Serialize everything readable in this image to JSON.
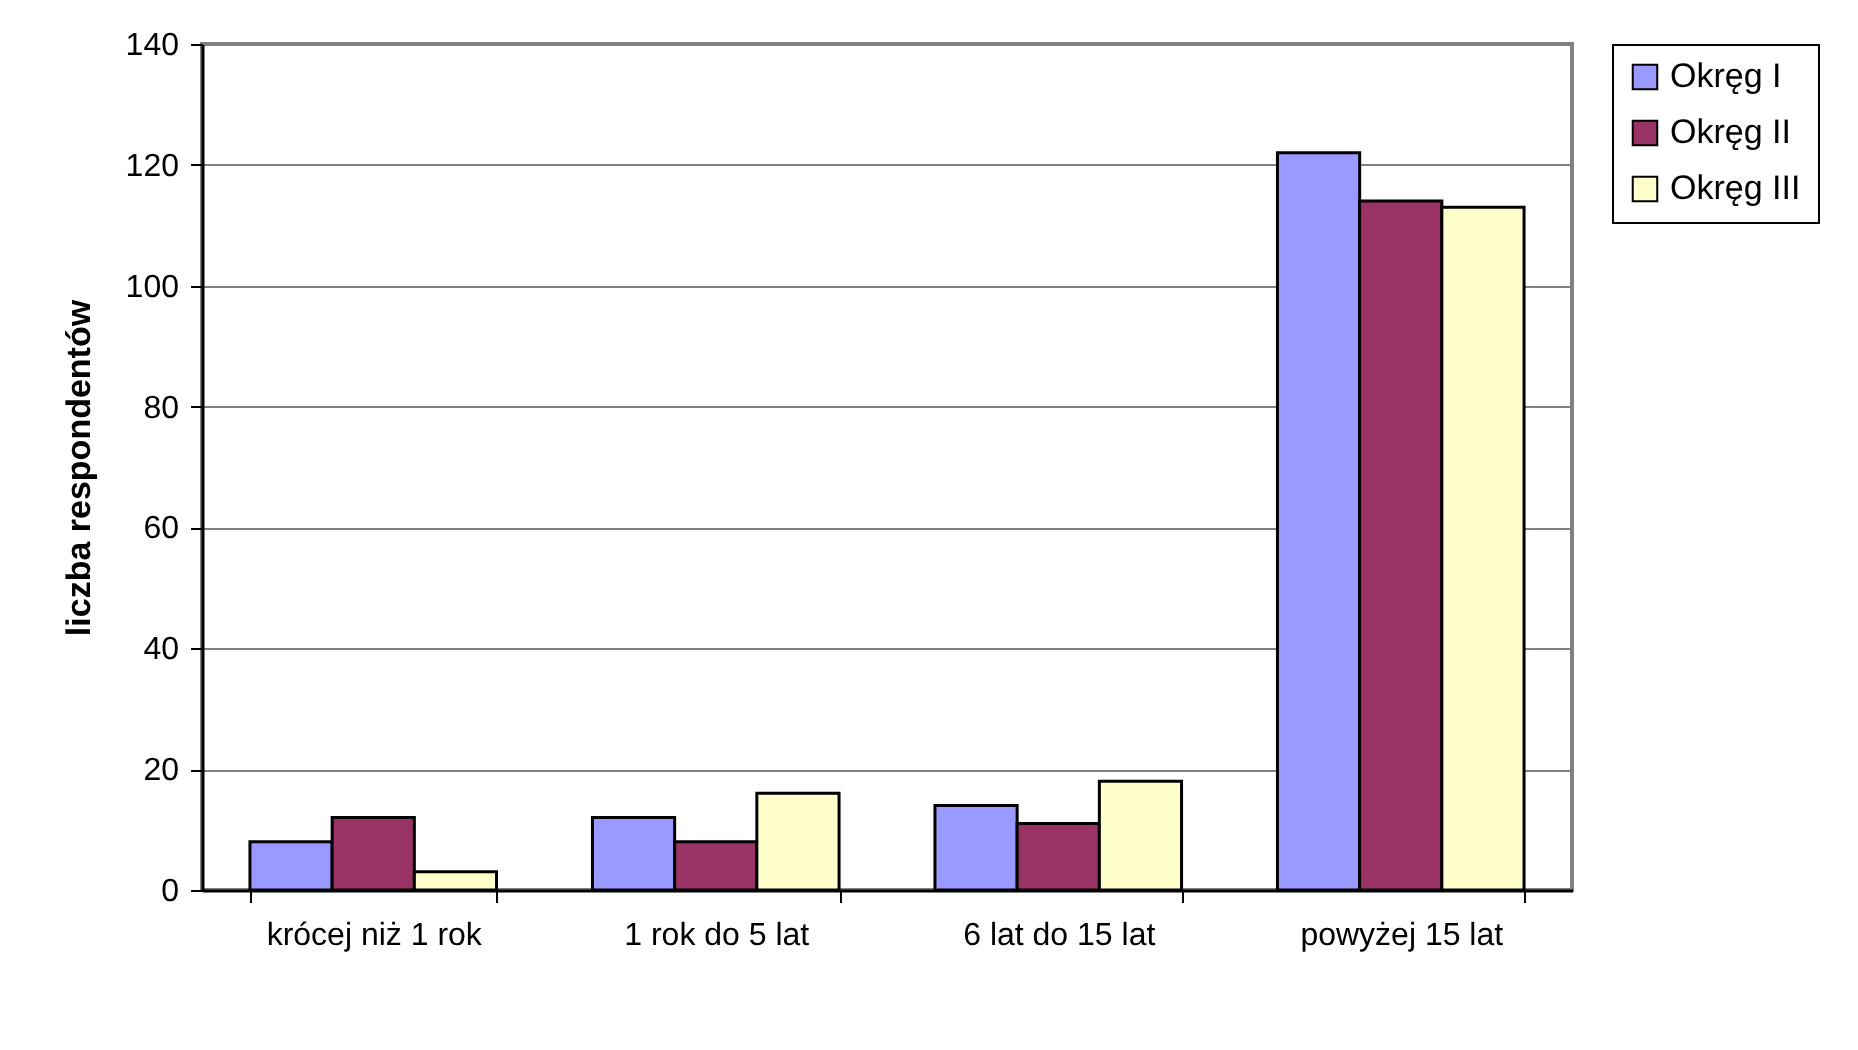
{
  "chart_data": {
    "type": "bar",
    "ylabel": "liczba respondentów",
    "categories": [
      "krócej niż 1 rok",
      "1 rok do 5 lat",
      "6 lat do 15 lat",
      "powyżej 15 lat"
    ],
    "series": [
      {
        "name": "Okręg I",
        "color": "#9999ff",
        "values": [
          8,
          12,
          14,
          122
        ]
      },
      {
        "name": "Okręg II",
        "color": "#993366",
        "values": [
          12,
          8,
          11,
          114
        ]
      },
      {
        "name": "Okręg III",
        "color": "#ffffcc",
        "values": [
          3,
          16,
          18,
          113
        ]
      }
    ],
    "ylim": [
      0,
      140
    ],
    "yticks": [
      0,
      20,
      40,
      60,
      80,
      100,
      120,
      140
    ],
    "grid": "y",
    "legend": "right"
  }
}
